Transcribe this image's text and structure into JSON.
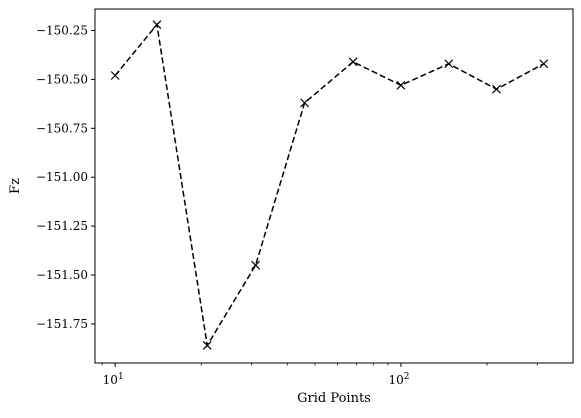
{
  "chart_data": {
    "type": "line",
    "title": "",
    "xlabel": "Grid Points",
    "ylabel": "Fz",
    "xscale": "log",
    "xlim": [
      8.5,
      400
    ],
    "ylim": [
      -151.95,
      -150.14
    ],
    "grid": false,
    "legend": "none",
    "line_style": "dashed",
    "marker": "x",
    "line_color": "#000000",
    "x_ticks": [
      {
        "value": 10,
        "base": "10",
        "exp": "1"
      },
      {
        "value": 100,
        "base": "10",
        "exp": "2"
      }
    ],
    "y_ticks": [
      {
        "value": -150.25,
        "label": "−150.25"
      },
      {
        "value": -150.5,
        "label": "−150.50"
      },
      {
        "value": -150.75,
        "label": "−150.75"
      },
      {
        "value": -151.0,
        "label": "−151.00"
      },
      {
        "value": -151.25,
        "label": "−151.25"
      },
      {
        "value": -151.5,
        "label": "−151.50"
      },
      {
        "value": -151.75,
        "label": "−151.75"
      }
    ],
    "series": [
      {
        "x": [
          10,
          14,
          21,
          31,
          46,
          68,
          100,
          147,
          216,
          316
        ],
        "y": [
          -150.48,
          -150.22,
          -151.86,
          -151.45,
          -150.62,
          -150.41,
          -150.53,
          -150.42,
          -150.55,
          -150.42
        ]
      }
    ]
  }
}
